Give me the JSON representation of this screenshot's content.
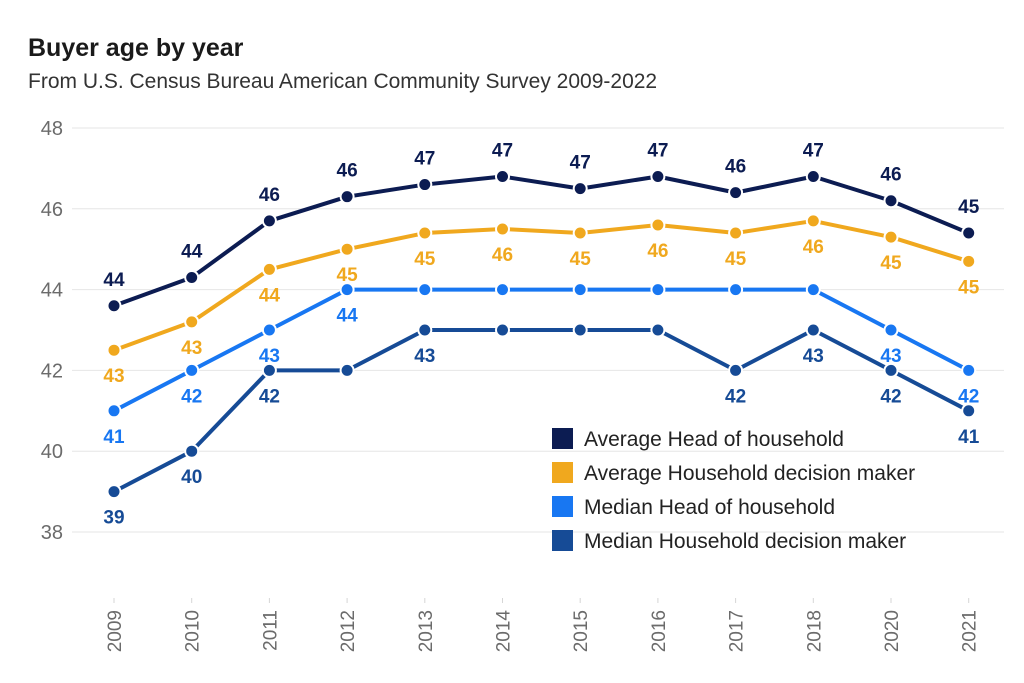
{
  "chart_data": {
    "type": "line",
    "title": "Buyer age by year",
    "subtitle": "From U.S. Census Bureau American Community Survey 2009-2022",
    "x": [
      "2009",
      "2010",
      "2011",
      "2012",
      "2013",
      "2014",
      "2015",
      "2016",
      "2017",
      "2018",
      "2020",
      "2021"
    ],
    "ylim": [
      38,
      48
    ],
    "yticks": [
      38,
      40,
      42,
      44,
      46,
      48
    ],
    "grid": true,
    "legend_position": "bottom-right",
    "series": [
      {
        "name": "Average Head of household",
        "color": "#0c1c52",
        "values": [
          43.6,
          44.3,
          45.7,
          46.3,
          46.6,
          46.8,
          46.5,
          46.8,
          46.4,
          46.8,
          46.2,
          45.4
        ],
        "labels": [
          "44",
          "44",
          "46",
          "46",
          "47",
          "47",
          "47",
          "47",
          "46",
          "47",
          "46",
          "45"
        ],
        "label_pos": "above"
      },
      {
        "name": "Average Household decision maker",
        "color": "#f0a81e",
        "values": [
          42.5,
          43.2,
          44.5,
          45.0,
          45.4,
          45.5,
          45.4,
          45.6,
          45.4,
          45.7,
          45.3,
          44.7
        ],
        "labels": [
          "43",
          "43",
          "44",
          "45",
          "45",
          "46",
          "45",
          "46",
          "45",
          "46",
          "45",
          "45"
        ],
        "label_pos": "below"
      },
      {
        "name": "Median Head of household",
        "color": "#1877f2",
        "values": [
          41,
          42,
          43,
          44,
          44,
          44,
          44,
          44,
          44,
          44,
          43,
          42
        ],
        "labels": [
          "41",
          "42",
          "43",
          "44",
          "",
          "",
          "",
          "",
          "",
          "",
          "43",
          "42"
        ],
        "label_pos": "below"
      },
      {
        "name": "Median Household decision maker",
        "color": "#164b96",
        "values": [
          39,
          40,
          42,
          42,
          43,
          43,
          43,
          43,
          42,
          43,
          42,
          41
        ],
        "labels": [
          "39",
          "40",
          "42",
          "",
          "43",
          "",
          "",
          "",
          "42",
          "43",
          "42",
          "41"
        ],
        "label_pos": "below"
      }
    ]
  }
}
